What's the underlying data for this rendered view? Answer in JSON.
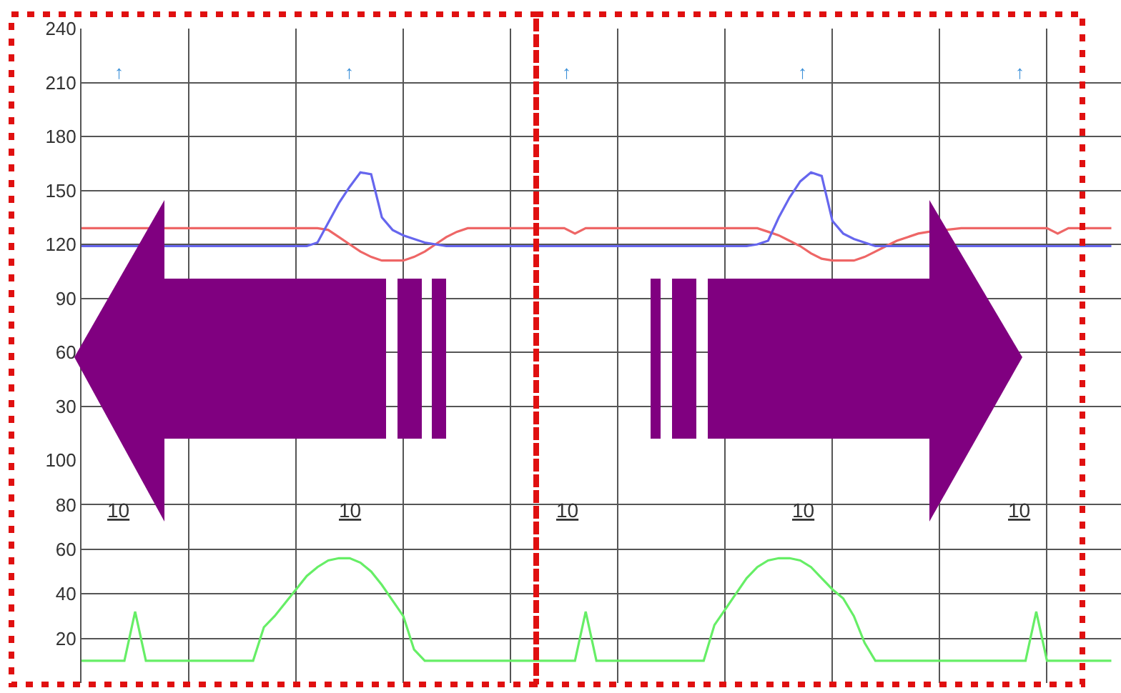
{
  "chart_data": [
    {
      "type": "line",
      "categories": [
        null,
        null,
        null,
        null,
        null,
        null,
        null,
        null,
        null,
        null,
        null,
        null,
        null,
        null,
        null,
        null,
        null,
        null,
        null,
        null,
        null,
        null,
        null,
        null,
        null,
        null,
        null,
        null,
        null,
        null,
        null,
        null,
        null,
        null,
        null,
        null,
        null,
        null,
        null,
        null,
        null,
        null,
        null,
        null,
        null,
        null,
        null,
        null,
        null,
        null,
        null,
        null,
        null,
        null,
        null,
        null,
        null,
        null,
        null,
        null,
        null,
        null,
        null,
        null,
        null,
        null,
        null,
        null,
        null,
        null,
        null,
        null,
        null,
        null,
        null,
        null,
        null,
        null,
        null,
        null,
        null,
        null,
        null,
        null,
        null,
        null,
        null,
        null,
        null,
        null,
        null,
        null,
        null,
        null,
        null,
        null,
        null
      ],
      "series": [
        {
          "color": "#ee6666",
          "values": [
            129,
            129,
            129,
            129,
            129,
            129,
            129,
            null,
            129,
            129,
            129,
            129,
            129,
            129,
            129,
            129,
            129,
            129,
            129,
            129,
            129,
            129,
            129,
            128,
            124,
            120,
            116,
            113,
            111,
            111,
            111,
            113,
            116,
            120,
            124,
            127,
            129,
            129,
            129,
            129,
            129,
            129,
            129,
            129,
            129,
            129,
            126,
            129,
            129,
            129,
            129,
            129,
            129,
            129,
            129,
            129,
            129,
            129,
            129,
            129,
            129,
            129,
            129,
            129,
            127,
            125,
            122,
            119,
            115,
            112,
            111,
            111,
            111,
            113,
            116,
            119,
            122,
            124,
            126,
            127,
            null,
            null,
            129,
            129,
            129,
            129,
            129,
            129,
            129,
            129,
            129,
            126,
            129,
            129,
            129,
            129,
            129
          ]
        },
        {
          "color": "#6666ee",
          "values": [
            119,
            119,
            119,
            119,
            119,
            119,
            null,
            null,
            119,
            119,
            119,
            119,
            119,
            119,
            119,
            119,
            119,
            119,
            119,
            119,
            119,
            119,
            121,
            132,
            143,
            152,
            160,
            159,
            135,
            128,
            125,
            123,
            121,
            120,
            119,
            119,
            119,
            119,
            119,
            119,
            119,
            119,
            119,
            119,
            119,
            119,
            119,
            119,
            119,
            119,
            119,
            119,
            119,
            119,
            119,
            119,
            119,
            119,
            119,
            119,
            119,
            119,
            119,
            120,
            122,
            135,
            146,
            155,
            160,
            158,
            133,
            126,
            123,
            121,
            119,
            119,
            119,
            119,
            119,
            119,
            null,
            null,
            119,
            119,
            119,
            119,
            119,
            119,
            119,
            119,
            119,
            119,
            119,
            119,
            119,
            119,
            119
          ]
        }
      ],
      "ylim": [
        0,
        240
      ],
      "yticks": [
        30,
        60,
        90,
        120,
        150,
        180,
        210,
        240
      ],
      "grid": true,
      "tick_labels": "y",
      "annotations": [
        "↑",
        "↑",
        "↑",
        "↑",
        "↑"
      ]
    },
    {
      "type": "line",
      "categories": [
        null,
        null,
        null,
        null,
        null,
        null,
        null,
        null,
        null,
        null,
        null,
        null,
        null,
        null,
        null,
        null,
        null,
        null,
        null,
        null,
        null,
        null,
        null,
        null,
        null,
        null,
        null,
        null,
        null,
        null,
        null,
        null,
        null,
        null,
        null,
        null,
        null,
        null,
        null,
        null,
        null,
        null,
        null,
        null,
        null,
        null,
        null,
        null,
        null,
        null,
        null,
        null,
        null,
        null,
        null,
        null,
        null,
        null,
        null,
        null,
        null,
        null,
        null,
        null,
        null,
        null,
        null,
        null,
        null,
        null,
        null,
        null,
        null,
        null,
        null,
        null,
        null,
        null,
        null,
        null,
        null,
        null,
        null,
        null,
        null,
        null,
        null,
        null,
        null,
        null,
        null,
        null,
        null,
        null,
        null,
        null,
        null
      ],
      "series": [
        {
          "color": "#66ee66",
          "values": [
            10,
            10,
            10,
            10,
            10,
            32,
            10,
            10,
            10,
            10,
            10,
            10,
            10,
            10,
            10,
            10,
            10,
            25,
            30,
            36,
            42,
            48,
            52,
            55,
            56,
            56,
            54,
            50,
            44,
            37,
            30,
            15,
            10,
            10,
            10,
            10,
            10,
            10,
            10,
            10,
            10,
            10,
            10,
            10,
            10,
            10,
            10,
            32,
            10,
            10,
            10,
            10,
            10,
            10,
            10,
            10,
            10,
            10,
            10,
            26,
            33,
            40,
            47,
            52,
            55,
            56,
            56,
            55,
            52,
            47,
            42,
            38,
            30,
            18,
            10,
            10,
            10,
            10,
            10,
            10,
            10,
            10,
            10,
            10,
            10,
            10,
            10,
            10,
            10,
            32,
            10,
            10,
            10,
            10,
            10,
            10,
            10
          ]
        }
      ],
      "ylim": [
        0,
        100
      ],
      "yticks": [
        20,
        40,
        60,
        80,
        100
      ],
      "grid": true,
      "tick_labels": "y",
      "annotations": [
        "10",
        "10",
        "10",
        "10",
        "10"
      ]
    }
  ]
}
